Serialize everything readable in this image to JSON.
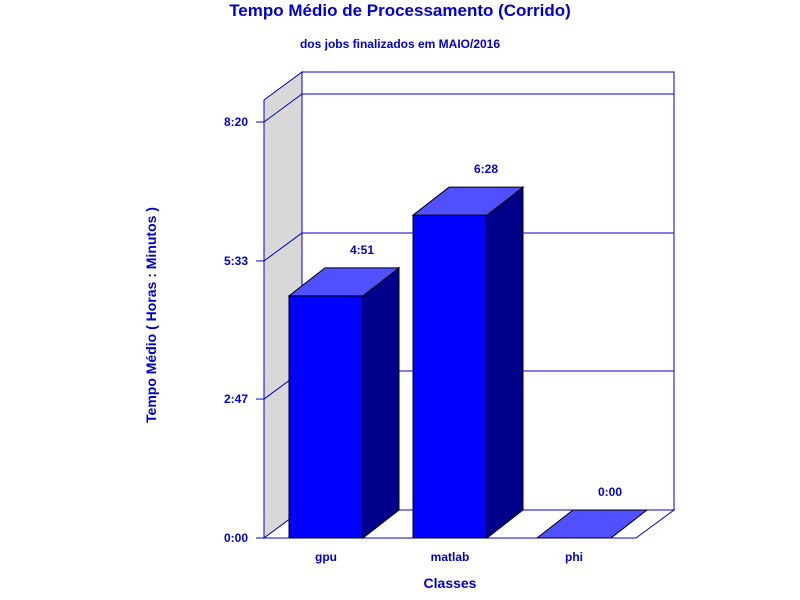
{
  "chart_data": {
    "type": "bar",
    "title": "Tempo Médio de Processamento (Corrido)",
    "subtitle": "dos jobs finalizados em MAIO/2016",
    "xlabel": "Classes",
    "ylabel": "Tempo Médio ( Horas : Minutos )",
    "categories": [
      "gpu",
      "matlab",
      "phi"
    ],
    "values_minutes": [
      291,
      388,
      0
    ],
    "value_labels": [
      "4:51",
      "6:28",
      "0:00"
    ],
    "yticks_minutes": [
      0,
      167,
      333,
      500
    ],
    "ytick_labels": [
      "0:00",
      "2:47",
      "5:33",
      "8:20"
    ],
    "ylim_minutes": [
      0,
      500
    ],
    "grid": true,
    "colors": {
      "text": "#0000cc",
      "bar_front": "#0000ff",
      "bar_top": "#5050ff",
      "bar_side": "#00008b",
      "frame": "#0000cc",
      "left_wall": "#d8d8d8"
    }
  }
}
